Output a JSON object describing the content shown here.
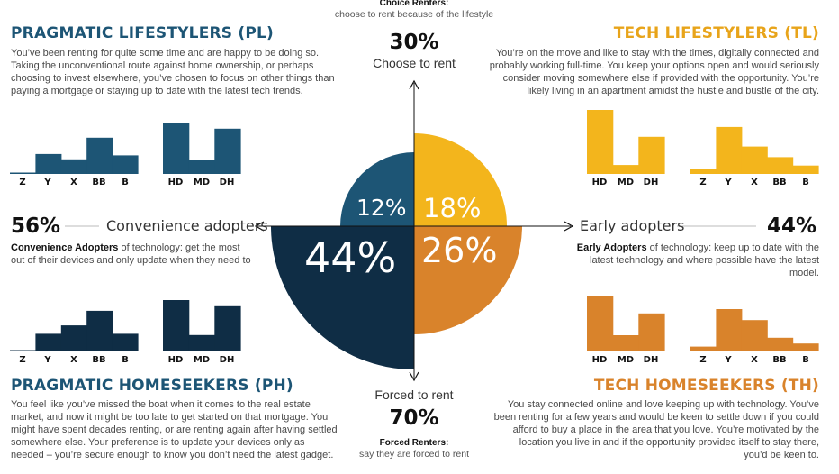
{
  "top": {
    "title": "Choice Renters:",
    "subtitle": "choose to rent because of the lifestyle",
    "pct": "30%",
    "caption": "Choose to rent"
  },
  "bottom": {
    "caption": "Forced to rent",
    "pct": "70%",
    "title": "Forced Renters:",
    "subtitle": "say they are forced to rent"
  },
  "left": {
    "pct": "56%",
    "caption": "Convenience adopters",
    "desc_bold": "Convenience Adopters",
    "desc_rest": " of technology: get the most out of their devices and only update when they need to"
  },
  "right": {
    "pct": "44%",
    "caption": "Early adopters",
    "desc_bold": "Early Adopters",
    "desc_rest": " of technology: keep up to date with the latest technology and where possible have the latest model."
  },
  "quadrants": {
    "pl": {
      "title": "PRAGMATIC LIFESTYLERS (PL)",
      "text": "You’ve been renting for quite some time and are happy to be doing so. Taking the unconventional route against home ownership, or perhaps choosing to invest elsewhere, you’ve chosen to focus on other things than paying a mortgage or staying up to date with the latest tech trends.",
      "pct": "12%",
      "color": "#1d5575"
    },
    "tl": {
      "title": "TECH LIFESTYLERS (TL)",
      "text": "You’re on the move and like to stay with the times, digitally connected and probably working full-time. You keep your options open and would seriously consider moving somewhere else if provided with the opportunity. You’re likely living in an apartment amidst the hustle and bustle of the city.",
      "pct": "18%",
      "color": "#f3b51c"
    },
    "ph": {
      "title": "PRAGMATIC HOMESEEKERS (PH)",
      "text": "You feel like you’ve missed the boat when it comes to the real estate market, and now it might be too late to get started on that mortgage. You might have spent decades renting, or are renting again after having settled somewhere else. Your preference is to update your devices only as needed – you’re secure enough to know you don’t need the latest gadget.",
      "pct": "44%",
      "color": "#0f2d45"
    },
    "th": {
      "title": "TECH HOMESEEKERS (TH)",
      "text": "You stay connected online and love keeping up with technology. You’ve been renting for a few years and would be keen to settle down if you could afford to buy a place in the area that you love. You’re motivated by the location you live in and if the opportunity provided itself to stay there, you’d be keen to.",
      "pct": "26%",
      "color": "#d9832b"
    }
  },
  "chart_data": [
    {
      "type": "bar",
      "panel": "PL generations",
      "categories": [
        "Z",
        "Y",
        "X",
        "BB",
        "B"
      ],
      "values": [
        0.03,
        0.45,
        0.33,
        0.82,
        0.42
      ],
      "color": "#1d5575"
    },
    {
      "type": "bar",
      "panel": "PL housing",
      "categories": [
        "HD",
        "MD",
        "DH"
      ],
      "values": [
        1.0,
        0.28,
        0.88
      ],
      "color": "#1d5575"
    },
    {
      "type": "bar",
      "panel": "TL housing",
      "categories": [
        "HD",
        "MD",
        "DH"
      ],
      "values": [
        1.0,
        0.14,
        0.58
      ],
      "color": "#f3b51c"
    },
    {
      "type": "bar",
      "panel": "TL generations",
      "categories": [
        "Z",
        "Y",
        "X",
        "BB",
        "B"
      ],
      "values": [
        0.08,
        0.84,
        0.49,
        0.3,
        0.15
      ],
      "color": "#f3b51c"
    },
    {
      "type": "bar",
      "panel": "PH generations",
      "categories": [
        "Z",
        "Y",
        "X",
        "BB",
        "B"
      ],
      "values": [
        0.03,
        0.4,
        0.59,
        0.92,
        0.4
      ],
      "color": "#0f2d45"
    },
    {
      "type": "bar",
      "panel": "PH housing",
      "categories": [
        "HD",
        "MD",
        "DH"
      ],
      "values": [
        1.0,
        0.32,
        0.88
      ],
      "color": "#0f2d45"
    },
    {
      "type": "bar",
      "panel": "TH housing",
      "categories": [
        "HD",
        "MD",
        "DH"
      ],
      "values": [
        1.0,
        0.29,
        0.68
      ],
      "color": "#d9832b"
    },
    {
      "type": "bar",
      "panel": "TH generations",
      "categories": [
        "Z",
        "Y",
        "X",
        "BB",
        "B"
      ],
      "values": [
        0.11,
        0.96,
        0.71,
        0.31,
        0.18
      ],
      "color": "#d9832b"
    }
  ]
}
